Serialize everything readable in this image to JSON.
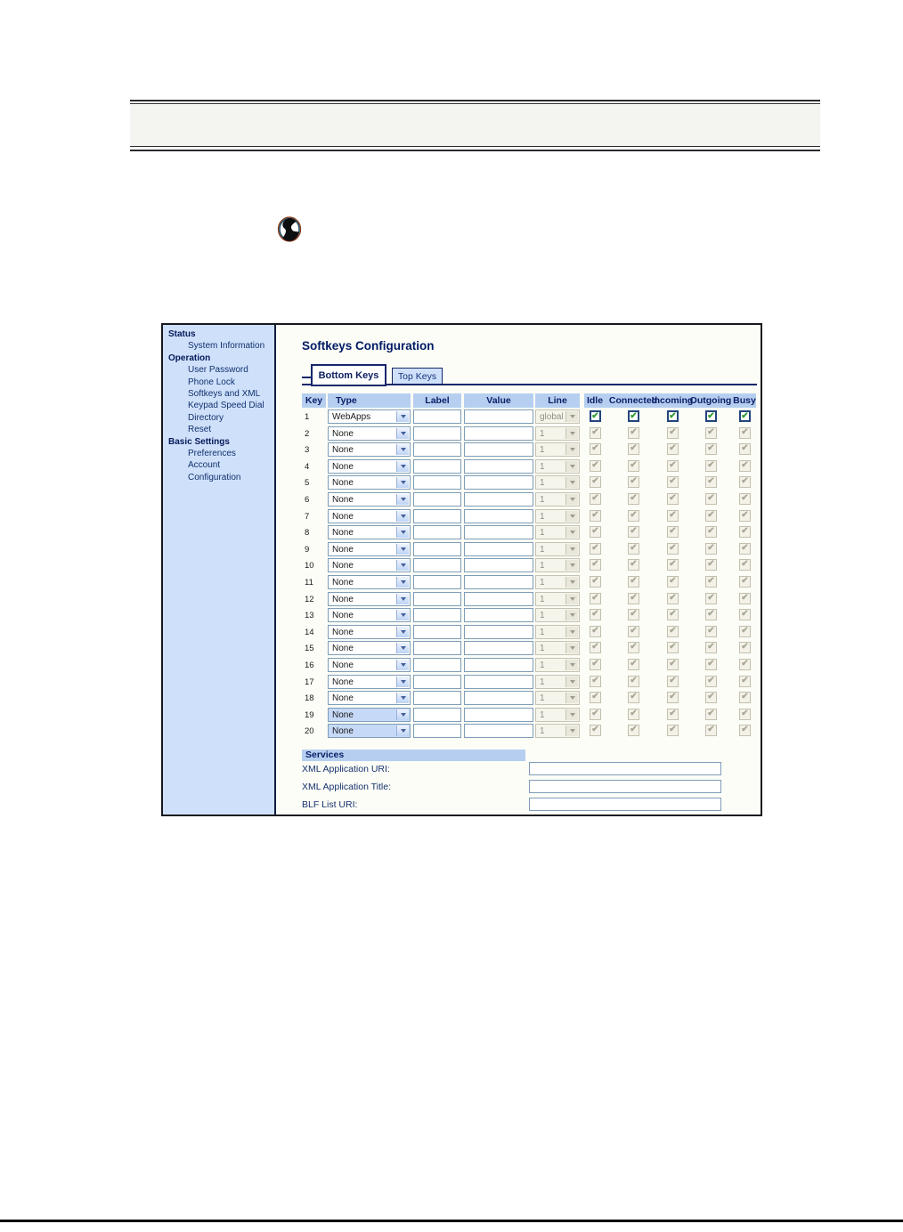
{
  "colors": {
    "sidebar_bg": "#cfe1fa",
    "table_header_bg": "#b6cff0",
    "navy_text": "#0a1e66",
    "tab_border": "#16276b",
    "check_green": "#2f9b31",
    "select_border": "#7f9db9"
  },
  "header_note": {
    "icon": "globe-icon"
  },
  "screenshot": {
    "sidebar": {
      "sections": [
        {
          "label": "Status",
          "items": [
            "System Information"
          ]
        },
        {
          "label": "Operation",
          "items": [
            "User Password",
            "Phone Lock",
            "Softkeys and XML",
            "Keypad Speed Dial",
            "Directory",
            "Reset"
          ]
        },
        {
          "label": "Basic Settings",
          "items": [
            "Preferences",
            "Account Configuration"
          ]
        }
      ]
    },
    "main": {
      "title": "Softkeys Configuration",
      "tabs": [
        {
          "label": "Bottom Keys",
          "active": true
        },
        {
          "label": "Top Keys",
          "active": false
        }
      ],
      "table": {
        "columns": [
          "Key",
          "Type",
          "Label",
          "Value",
          "Line"
        ],
        "state_columns": [
          "Idle",
          "Connected",
          "Incoming",
          "Outgoing",
          "Busy"
        ],
        "rows": [
          {
            "key": "1",
            "type": "WebApps",
            "label": "",
            "value": "",
            "line": "global",
            "enabled": true,
            "highlight": false
          },
          {
            "key": "2",
            "type": "None",
            "label": "",
            "value": "",
            "line": "1",
            "enabled": false,
            "highlight": false
          },
          {
            "key": "3",
            "type": "None",
            "label": "",
            "value": "",
            "line": "1",
            "enabled": false,
            "highlight": false
          },
          {
            "key": "4",
            "type": "None",
            "label": "",
            "value": "",
            "line": "1",
            "enabled": false,
            "highlight": false
          },
          {
            "key": "5",
            "type": "None",
            "label": "",
            "value": "",
            "line": "1",
            "enabled": false,
            "highlight": false
          },
          {
            "key": "6",
            "type": "None",
            "label": "",
            "value": "",
            "line": "1",
            "enabled": false,
            "highlight": false
          },
          {
            "key": "7",
            "type": "None",
            "label": "",
            "value": "",
            "line": "1",
            "enabled": false,
            "highlight": false
          },
          {
            "key": "8",
            "type": "None",
            "label": "",
            "value": "",
            "line": "1",
            "enabled": false,
            "highlight": false
          },
          {
            "key": "9",
            "type": "None",
            "label": "",
            "value": "",
            "line": "1",
            "enabled": false,
            "highlight": false
          },
          {
            "key": "10",
            "type": "None",
            "label": "",
            "value": "",
            "line": "1",
            "enabled": false,
            "highlight": false
          },
          {
            "key": "11",
            "type": "None",
            "label": "",
            "value": "",
            "line": "1",
            "enabled": false,
            "highlight": false
          },
          {
            "key": "12",
            "type": "None",
            "label": "",
            "value": "",
            "line": "1",
            "enabled": false,
            "highlight": false
          },
          {
            "key": "13",
            "type": "None",
            "label": "",
            "value": "",
            "line": "1",
            "enabled": false,
            "highlight": false
          },
          {
            "key": "14",
            "type": "None",
            "label": "",
            "value": "",
            "line": "1",
            "enabled": false,
            "highlight": false
          },
          {
            "key": "15",
            "type": "None",
            "label": "",
            "value": "",
            "line": "1",
            "enabled": false,
            "highlight": false
          },
          {
            "key": "16",
            "type": "None",
            "label": "",
            "value": "",
            "line": "1",
            "enabled": false,
            "highlight": false
          },
          {
            "key": "17",
            "type": "None",
            "label": "",
            "value": "",
            "line": "1",
            "enabled": false,
            "highlight": false
          },
          {
            "key": "18",
            "type": "None",
            "label": "",
            "value": "",
            "line": "1",
            "enabled": false,
            "highlight": false
          },
          {
            "key": "19",
            "type": "None",
            "label": "",
            "value": "",
            "line": "1",
            "enabled": false,
            "highlight": true
          },
          {
            "key": "20",
            "type": "None",
            "label": "",
            "value": "",
            "line": "1",
            "enabled": false,
            "highlight": true
          }
        ]
      },
      "services": {
        "title": "Services",
        "fields": [
          {
            "label": "XML Application URI:",
            "value": ""
          },
          {
            "label": "XML Application Title:",
            "value": ""
          },
          {
            "label": "BLF List URI:",
            "value": ""
          }
        ]
      }
    }
  }
}
